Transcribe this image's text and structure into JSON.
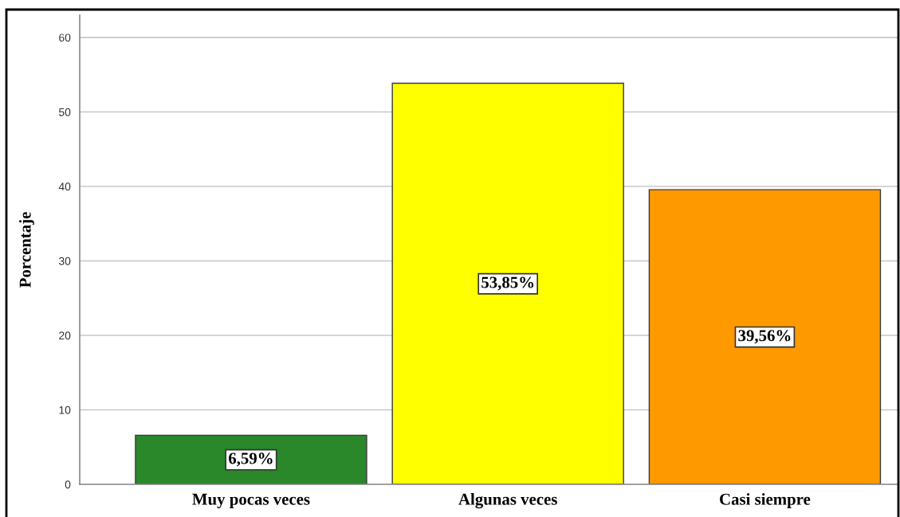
{
  "chart_data": {
    "type": "bar",
    "ylabel": "Porcentaje",
    "categories": [
      "Muy pocas veces",
      "Algunas veces",
      "Casi siempre"
    ],
    "values": [
      6.59,
      53.85,
      39.56
    ],
    "colors": [
      "#2a872a",
      "#ffff00",
      "#ff9900"
    ],
    "value_labels": [
      "6,59%",
      "53,85%",
      "39,56%"
    ],
    "ylim": [
      0,
      63
    ],
    "yticks": [
      0,
      10,
      20,
      30,
      40,
      50,
      60
    ],
    "grid": "y"
  }
}
